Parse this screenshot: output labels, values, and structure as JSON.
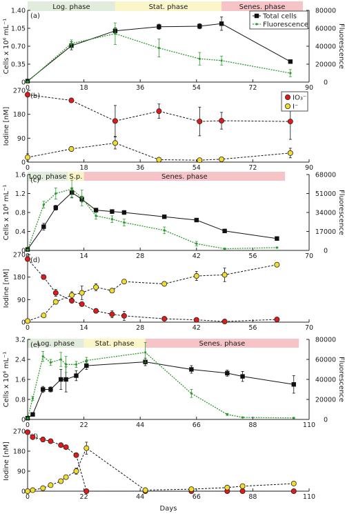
{
  "colors": {
    "total": "#111111",
    "fluor": "#2a9a2a",
    "iodate": "#e0191b",
    "iodide": "#f2dc2e",
    "log_phase": "#e2ecdc",
    "stat_phase": "#fbf6c9",
    "senes_phase": "#f6c4c6"
  },
  "xlabel": "Days",
  "chart_data": [
    {
      "type": "line",
      "panel": "(a)",
      "ylabel": "Cells x 10⁶ mL⁻¹",
      "y2label": "Fluorescence",
      "xlim": [
        0,
        90
      ],
      "xticks": [
        "0",
        "18",
        "36",
        "54",
        "72",
        "90"
      ],
      "ylim": [
        0,
        1.4
      ],
      "yticks": [
        "0",
        "0.35",
        "0.70",
        "1.05",
        "1.40"
      ],
      "y2lim": [
        0,
        80000
      ],
      "y2ticks": [
        "0",
        "20000",
        "40000",
        "60000",
        "80000"
      ],
      "phases": [
        {
          "label": "Log. phase",
          "start": 0,
          "end": 28,
          "kind": "log"
        },
        {
          "label": "Stat. phase",
          "start": 28,
          "end": 62,
          "kind": "stat"
        },
        {
          "label": "Senes. phase",
          "start": 62,
          "end": 88,
          "kind": "senes"
        }
      ],
      "legend": [
        "Total cells",
        "Fluorescence"
      ],
      "series": [
        {
          "name": "Total cells",
          "axis": "left",
          "x": [
            0,
            14,
            28,
            42,
            55,
            62,
            84
          ],
          "y": [
            0.02,
            0.71,
            1.0,
            1.08,
            1.09,
            1.14,
            0.4
          ],
          "err": [
            0.01,
            0.08,
            0.06,
            0.05,
            0.05,
            0.13,
            0.03
          ]
        },
        {
          "name": "Fluorescence",
          "axis": "right",
          "x": [
            0,
            14,
            28,
            42,
            55,
            62,
            84
          ],
          "y": [
            500,
            43000,
            54000,
            38000,
            26000,
            24000,
            10000
          ],
          "err": [
            300,
            4000,
            12000,
            10000,
            7000,
            5000,
            4000
          ]
        }
      ]
    },
    {
      "type": "line",
      "panel": "(b)",
      "ylabel": "Iodine [nM]",
      "xlim": [
        0,
        90
      ],
      "xticks": [
        "0",
        "18",
        "36",
        "54",
        "72",
        "90"
      ],
      "ylim": [
        0,
        300
      ],
      "yticks": [
        "0",
        "90",
        "180",
        "270"
      ],
      "legend": [
        "IO₃⁻",
        "I⁻"
      ],
      "series": [
        {
          "name": "IO₃⁻",
          "x": [
            0,
            14,
            28,
            42,
            55,
            62,
            84
          ],
          "y": [
            282,
            258,
            172,
            213,
            170,
            173,
            170
          ],
          "err": [
            5,
            5,
            65,
            30,
            60,
            35,
            75
          ]
        },
        {
          "name": "I⁻",
          "x": [
            0,
            14,
            28,
            42,
            55,
            62,
            84
          ],
          "y": [
            20,
            55,
            80,
            10,
            8,
            12,
            38
          ],
          "err": [
            15,
            10,
            25,
            5,
            5,
            5,
            20
          ]
        }
      ]
    },
    {
      "type": "line",
      "panel": "(c)",
      "ylabel": "Cells x 10⁶ mL⁻¹",
      "y2label": "Fluorescence",
      "xlim": [
        0,
        70
      ],
      "xticks": [
        "0",
        "14",
        "28",
        "42",
        "56",
        "70"
      ],
      "ylim": [
        0,
        1.6
      ],
      "yticks": [
        "0",
        "0.4",
        "0.8",
        "1.2",
        "1.6"
      ],
      "y2lim": [
        0,
        68000
      ],
      "y2ticks": [
        "0",
        "17000",
        "34000",
        "51000",
        "68000"
      ],
      "phases": [
        {
          "label": "Log. phase",
          "start": 0,
          "end": 10,
          "kind": "log"
        },
        {
          "label": "S.p.",
          "start": 10,
          "end": 14,
          "kind": "stat"
        },
        {
          "label": "Senes. phase",
          "start": 14,
          "end": 64,
          "kind": "senes"
        }
      ],
      "series": [
        {
          "name": "Total cells",
          "axis": "left",
          "x": [
            0,
            4,
            7,
            11,
            13.5,
            17,
            21,
            24,
            34,
            42,
            49,
            62
          ],
          "y": [
            0.02,
            0.5,
            0.9,
            1.22,
            1.08,
            0.85,
            0.82,
            0.8,
            0.71,
            0.64,
            0.41,
            0.25
          ],
          "err": [
            0.01,
            0.07,
            0.05,
            0.1,
            0.06,
            0.04,
            0.04,
            0.04,
            0.03,
            0.03,
            0.03,
            0.04
          ]
        },
        {
          "name": "Fluorescence",
          "axis": "right",
          "x": [
            0,
            4,
            7,
            11,
            13.5,
            17,
            21,
            24,
            34,
            42,
            49,
            62
          ],
          "y": [
            500,
            41000,
            51000,
            55000,
            47000,
            31000,
            28000,
            25000,
            18000,
            6000,
            1500,
            2500
          ],
          "err": [
            300,
            3000,
            5000,
            8000,
            7000,
            3000,
            3000,
            3000,
            3000,
            2000,
            500,
            500
          ]
        }
      ]
    },
    {
      "type": "line",
      "panel": "(d)",
      "ylabel": "Iodine [nM]",
      "xlim": [
        0,
        70
      ],
      "xticks": [
        "0",
        "14",
        "28",
        "42",
        "56",
        "70"
      ],
      "ylim": [
        0,
        300
      ],
      "yticks": [
        "0",
        "90",
        "180",
        "270"
      ],
      "series": [
        {
          "name": "IO₃⁻",
          "x": [
            0,
            4,
            7,
            11,
            13.5,
            17,
            21,
            24,
            34,
            42,
            49,
            62
          ],
          "y": [
            280,
            200,
            130,
            95,
            80,
            50,
            35,
            28,
            15,
            10,
            3,
            12
          ],
          "err": [
            5,
            10,
            15,
            10,
            5,
            10,
            15,
            20,
            10,
            5,
            2,
            10
          ]
        },
        {
          "name": "I⁻",
          "x": [
            0,
            4,
            7,
            11,
            13.5,
            17,
            21,
            24,
            34,
            42,
            49,
            62
          ],
          "y": [
            5,
            30,
            90,
            120,
            130,
            155,
            140,
            180,
            170,
            205,
            210,
            255
          ],
          "err": [
            3,
            5,
            10,
            15,
            30,
            15,
            10,
            10,
            10,
            20,
            30,
            10
          ]
        }
      ]
    },
    {
      "type": "line",
      "panel": "(e)",
      "ylabel": "Cells x 10⁶ mL⁻¹",
      "y2label": "Fluorescence",
      "xlim": [
        0,
        110
      ],
      "xticks": [
        "0",
        "22",
        "44",
        "66",
        "88",
        "110"
      ],
      "ylim": [
        0,
        3.2
      ],
      "yticks": [
        "0",
        "0.8",
        "1.6",
        "2.4",
        "3.2"
      ],
      "y2lim": [
        0,
        80000
      ],
      "y2ticks": [
        "0",
        "20000",
        "40000",
        "60000",
        "80000"
      ],
      "phases": [
        {
          "label": "Log. phase",
          "start": 0,
          "end": 22,
          "kind": "log"
        },
        {
          "label": "Stat. phase",
          "start": 22,
          "end": 46,
          "kind": "stat"
        },
        {
          "label": "Senes. phase",
          "start": 46,
          "end": 106,
          "kind": "senes"
        }
      ],
      "series": [
        {
          "name": "Total cells",
          "axis": "left",
          "x": [
            0,
            2,
            6,
            9,
            13,
            15,
            19,
            23,
            46,
            64,
            78,
            84,
            104
          ],
          "y": [
            0.05,
            0.2,
            1.2,
            1.2,
            1.6,
            1.6,
            1.75,
            2.15,
            2.3,
            2.0,
            1.85,
            1.72,
            1.4
          ],
          "err": [
            0.02,
            0.04,
            0.12,
            0.1,
            0.4,
            0.5,
            0.2,
            0.15,
            0.15,
            0.15,
            0.12,
            0.2,
            0.35
          ]
        },
        {
          "name": "Fluorescence",
          "axis": "right",
          "x": [
            0,
            2,
            6,
            9,
            13,
            15,
            19,
            23,
            46,
            64,
            78,
            84,
            104
          ],
          "y": [
            1000,
            21000,
            63000,
            57000,
            60000,
            55000,
            55000,
            59000,
            67000,
            26000,
            5000,
            2000,
            1500
          ],
          "err": [
            500,
            2000,
            5000,
            3000,
            7000,
            8000,
            3000,
            3000,
            10000,
            4000,
            1000,
            500,
            500
          ]
        }
      ]
    },
    {
      "type": "line",
      "panel": "(f)",
      "ylabel": "Iodine [nM]",
      "xlim": [
        0,
        110
      ],
      "xticks": [
        "0",
        "22",
        "44",
        "66",
        "88",
        "110"
      ],
      "ylim": [
        0,
        300
      ],
      "yticks": [
        "0",
        "90",
        "180",
        "270"
      ],
      "series": [
        {
          "name": "IO₃⁻",
          "x": [
            0,
            2,
            6,
            9,
            13,
            15,
            19,
            23,
            46,
            64,
            78,
            84,
            104
          ],
          "y": [
            295,
            270,
            258,
            250,
            230,
            220,
            180,
            0,
            0,
            0,
            0,
            0,
            0
          ],
          "err": [
            8,
            10,
            12,
            10,
            8,
            8,
            10,
            2,
            2,
            2,
            2,
            2,
            2
          ]
        },
        {
          "name": "I⁻",
          "x": [
            0,
            2,
            6,
            9,
            13,
            15,
            19,
            23,
            46,
            64,
            78,
            84,
            104
          ],
          "y": [
            0,
            5,
            15,
            30,
            50,
            70,
            100,
            215,
            5,
            10,
            18,
            25,
            38
          ],
          "err": [
            2,
            3,
            5,
            5,
            5,
            8,
            15,
            30,
            3,
            3,
            3,
            3,
            5
          ]
        }
      ]
    }
  ]
}
